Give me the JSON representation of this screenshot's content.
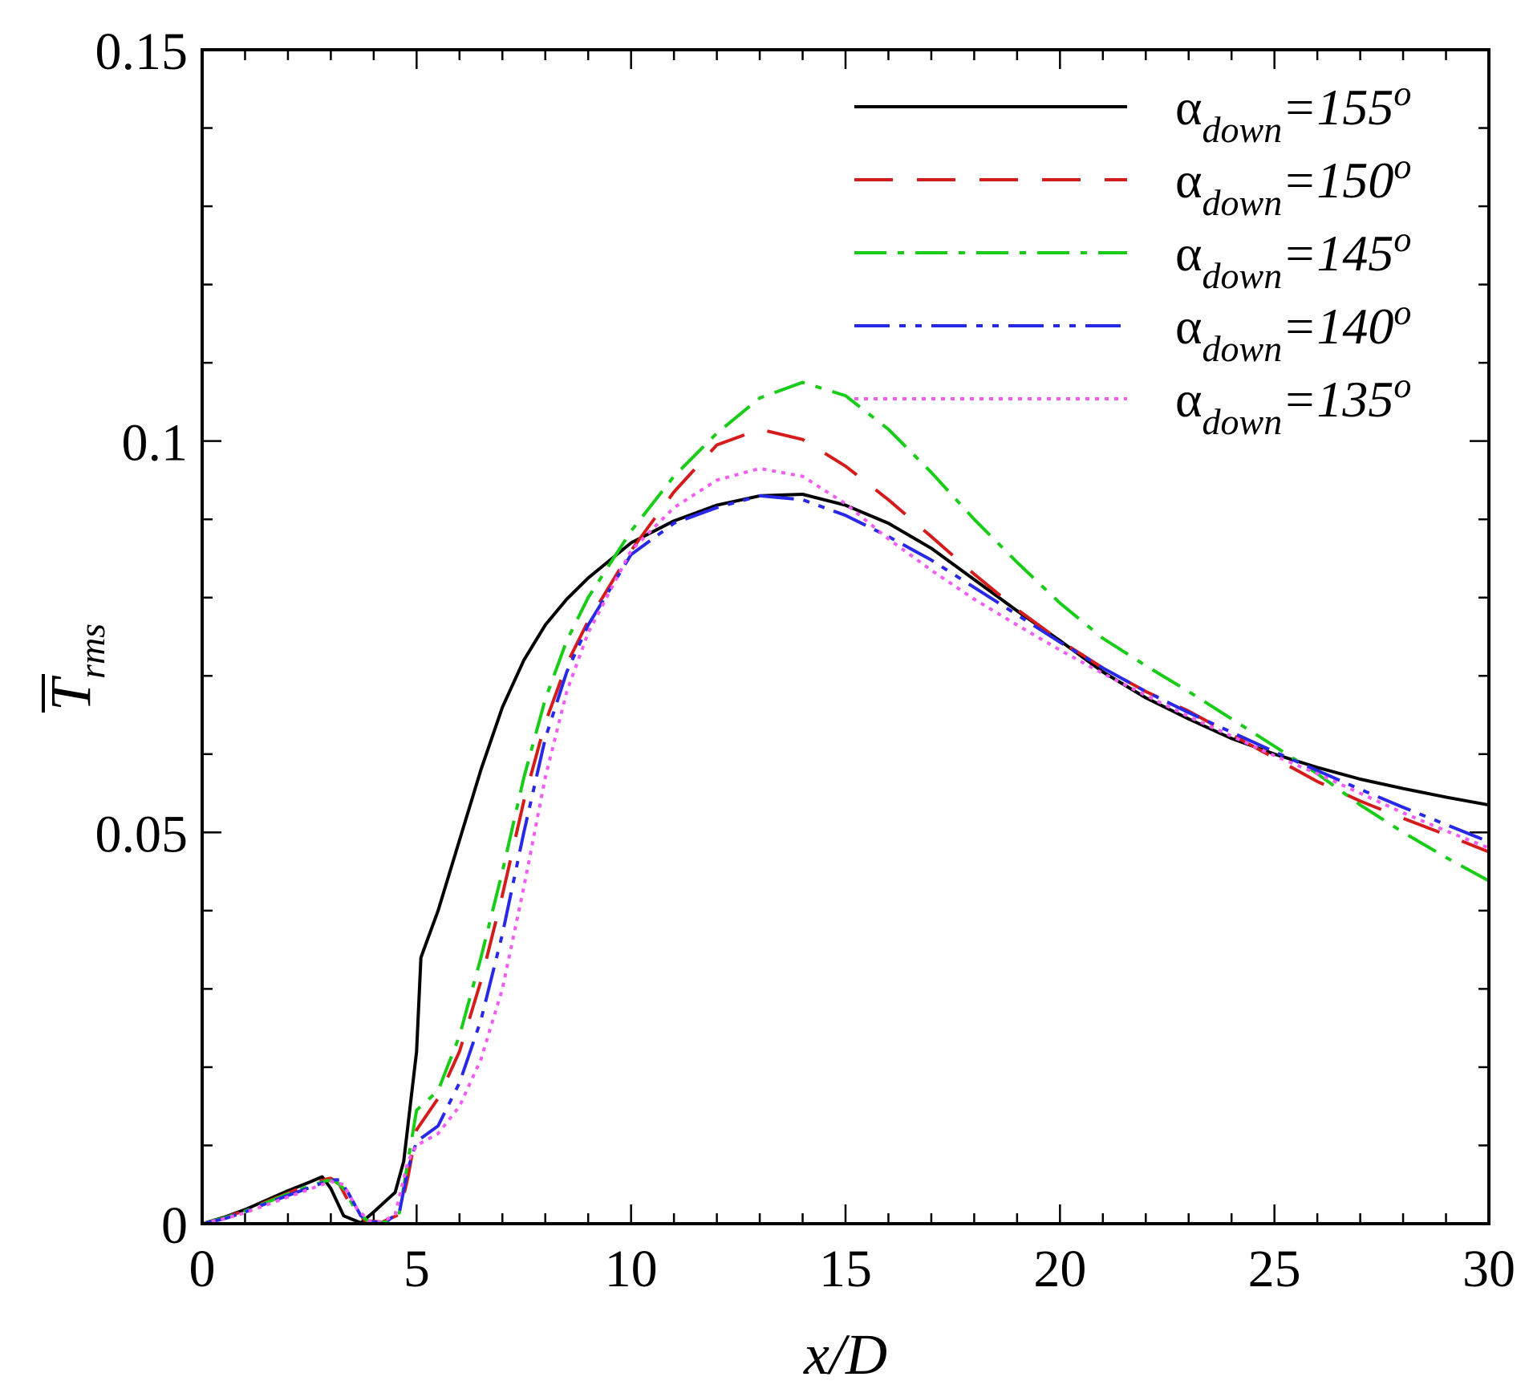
{
  "chart_data": {
    "type": "line",
    "xlabel": "x/D",
    "ylabel": "T",
    "ylabel_sub": "rms",
    "xlim": [
      0,
      30
    ],
    "ylim": [
      0,
      0.15
    ],
    "x_major_ticks": [
      0,
      5,
      10,
      15,
      20,
      25,
      30
    ],
    "x_major_tick_labels": [
      "0",
      "5",
      "10",
      "15",
      "20",
      "25",
      "30"
    ],
    "x_minor_step": 1,
    "y_major_ticks": [
      0,
      0.05,
      0.1,
      0.15
    ],
    "y_major_tick_labels": [
      "0",
      "0.05",
      "0.1",
      "0.15"
    ],
    "y_minor_step": 0.01,
    "grid": false,
    "legend_position": "top-right",
    "series": [
      {
        "name": "α_down=155°",
        "label_symbol": "α",
        "label_sub": "down",
        "label_value": "=155",
        "label_sup": "o",
        "color": "#000000",
        "dash": "solid",
        "x": [
          0,
          0.5,
          1,
          1.5,
          2,
          2.5,
          2.8,
          3.0,
          3.3,
          3.7,
          4.0,
          4.3,
          4.5,
          4.7,
          4.85,
          5.0,
          5.1,
          5.2,
          5.5,
          6.0,
          6.5,
          7.0,
          7.5,
          8.0,
          8.5,
          9.0,
          10.0,
          11.0,
          12.0,
          13.0,
          14.0,
          15.0,
          16.0,
          17.0,
          18.0,
          19.0,
          20.0,
          21.0,
          22.0,
          23.0,
          24.0,
          25.0,
          26.0,
          27.0,
          28.0,
          29.0,
          30.0
        ],
        "y": [
          0,
          0.0008,
          0.0018,
          0.003,
          0.0042,
          0.0053,
          0.006,
          0.0045,
          0.001,
          0.0001,
          0.0015,
          0.003,
          0.004,
          0.008,
          0.015,
          0.022,
          0.034,
          0.0355,
          0.04,
          0.049,
          0.058,
          0.066,
          0.072,
          0.0765,
          0.0798,
          0.0825,
          0.087,
          0.0898,
          0.0918,
          0.093,
          0.0932,
          0.0918,
          0.0895,
          0.0863,
          0.0823,
          0.0783,
          0.0745,
          0.0705,
          0.0672,
          0.0645,
          0.062,
          0.06,
          0.0583,
          0.0568,
          0.0556,
          0.0545,
          0.0535
        ]
      },
      {
        "name": "α_down=150°",
        "label_symbol": "α",
        "label_sub": "down",
        "label_value": "=150",
        "label_sup": "o",
        "color": "#d41c1c",
        "dash": "48,30",
        "x": [
          0,
          0.5,
          1,
          1.5,
          2,
          2.5,
          2.9,
          3.0,
          3.2,
          3.5,
          3.8,
          4.2,
          4.6,
          4.8,
          5.0,
          5.5,
          6.0,
          6.5,
          7.0,
          7.5,
          8.0,
          8.5,
          9.0,
          10.0,
          11.0,
          12.0,
          13.0,
          14.0,
          15.0,
          16.0,
          17.0,
          18.0,
          19.0,
          20.0,
          21.0,
          22.0,
          23.0,
          24.0,
          25.0,
          26.0,
          27.0,
          28.0,
          29.0,
          30.0
        ],
        "y": [
          0,
          0.0007,
          0.0017,
          0.0028,
          0.0039,
          0.005,
          0.0057,
          0.0058,
          0.005,
          0.002,
          0.0004,
          0.0002,
          0.0012,
          0.006,
          0.012,
          0.016,
          0.022,
          0.031,
          0.042,
          0.054,
          0.064,
          0.0715,
          0.077,
          0.086,
          0.0935,
          0.0995,
          0.1015,
          0.1002,
          0.0968,
          0.0925,
          0.0878,
          0.083,
          0.0785,
          0.0745,
          0.071,
          0.068,
          0.0655,
          0.0625,
          0.0595,
          0.0565,
          0.054,
          0.0518,
          0.0497,
          0.0475
        ]
      },
      {
        "name": "α_down=145°",
        "label_symbol": "α",
        "label_sub": "down",
        "label_value": "=145",
        "label_sup": "o",
        "color": "#18cc18",
        "dash": "40,14,8,14",
        "x": [
          0,
          0.5,
          1,
          1.5,
          2,
          2.5,
          2.9,
          3.1,
          3.3,
          3.6,
          3.9,
          4.3,
          4.6,
          4.8,
          5.0,
          5.5,
          6.0,
          6.5,
          7.0,
          7.5,
          8.0,
          8.5,
          9.0,
          10.0,
          11.0,
          12.0,
          13.0,
          14.0,
          15.0,
          16.0,
          17.0,
          18.0,
          19.0,
          20.0,
          21.0,
          22.0,
          23.0,
          24.0,
          25.0,
          26.0,
          27.0,
          28.0,
          29.0,
          30.0
        ],
        "y": [
          0,
          0.0007,
          0.0016,
          0.0027,
          0.0038,
          0.0048,
          0.0055,
          0.0055,
          0.0045,
          0.0015,
          0.0002,
          0.0002,
          0.0014,
          0.008,
          0.0145,
          0.017,
          0.024,
          0.034,
          0.045,
          0.057,
          0.067,
          0.0745,
          0.08,
          0.0885,
          0.0955,
          0.101,
          0.1055,
          0.1075,
          0.1058,
          0.1015,
          0.096,
          0.09,
          0.0845,
          0.0793,
          0.0748,
          0.0713,
          0.068,
          0.0645,
          0.061,
          0.0575,
          0.0535,
          0.05,
          0.0468,
          0.0438
        ]
      },
      {
        "name": "α_down=140°",
        "label_symbol": "α",
        "label_sub": "down",
        "label_value": "=140",
        "label_sup": "o",
        "color": "#2828e6",
        "dash": "44,12,8,12,8,12",
        "x": [
          0,
          0.5,
          1,
          1.5,
          2,
          2.5,
          3.0,
          3.2,
          3.4,
          3.7,
          4.0,
          4.3,
          4.6,
          4.8,
          5.0,
          5.5,
          6.0,
          6.5,
          7.0,
          7.5,
          8.0,
          8.5,
          9.0,
          10.0,
          11.0,
          12.0,
          13.0,
          14.0,
          15.0,
          16.0,
          17.0,
          18.0,
          19.0,
          20.0,
          21.0,
          22.0,
          23.0,
          24.0,
          25.0,
          26.0,
          27.0,
          28.0,
          29.0,
          30.0
        ],
        "y": [
          0,
          0.0006,
          0.0015,
          0.0026,
          0.0036,
          0.0046,
          0.0056,
          0.0056,
          0.004,
          0.001,
          0.0002,
          0.0003,
          0.0015,
          0.007,
          0.0105,
          0.0125,
          0.018,
          0.026,
          0.037,
          0.05,
          0.062,
          0.0705,
          0.0765,
          0.0855,
          0.0895,
          0.0915,
          0.093,
          0.0925,
          0.0905,
          0.0878,
          0.0848,
          0.0813,
          0.0778,
          0.0743,
          0.071,
          0.068,
          0.0653,
          0.0628,
          0.0603,
          0.0579,
          0.0555,
          0.0532,
          0.051,
          0.0488
        ]
      },
      {
        "name": "α_down=135°",
        "label_symbol": "α",
        "label_sub": "down",
        "label_value": "=135",
        "label_sup": "o",
        "color": "#f25cf2",
        "dash": "5,7",
        "x": [
          0,
          0.5,
          1,
          1.5,
          2,
          2.5,
          3.0,
          3.3,
          3.6,
          3.9,
          4.2,
          4.5,
          4.8,
          5.0,
          5.5,
          6.0,
          6.5,
          7.0,
          7.5,
          8.0,
          8.5,
          9.0,
          10.0,
          11.0,
          12.0,
          13.0,
          14.0,
          15.0,
          16.0,
          17.0,
          18.0,
          19.0,
          20.0,
          21.0,
          22.0,
          23.0,
          24.0,
          25.0,
          26.0,
          27.0,
          28.0,
          29.0,
          30.0
        ],
        "y": [
          0,
          0.0006,
          0.0014,
          0.0024,
          0.0034,
          0.0044,
          0.0054,
          0.005,
          0.002,
          0.0003,
          0.0002,
          0.0012,
          0.008,
          0.01,
          0.0115,
          0.015,
          0.021,
          0.03,
          0.043,
          0.057,
          0.068,
          0.0755,
          0.086,
          0.0915,
          0.095,
          0.0965,
          0.0955,
          0.092,
          0.0875,
          0.0835,
          0.0798,
          0.0765,
          0.0733,
          0.0703,
          0.0675,
          0.0648,
          0.0623,
          0.0598,
          0.0575,
          0.055,
          0.0525,
          0.0502,
          0.048
        ]
      }
    ]
  }
}
